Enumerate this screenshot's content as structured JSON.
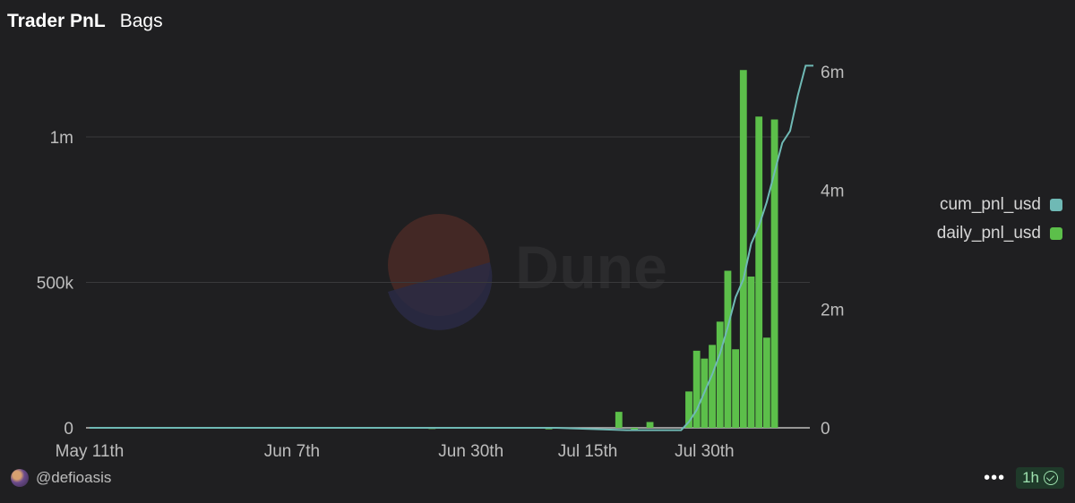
{
  "header": {
    "title": "Trader PnL",
    "subtitle": "Bags"
  },
  "watermark": {
    "text": "Dune"
  },
  "footer": {
    "author": "@defioasis",
    "refresh": "1h",
    "more_label": "•••"
  },
  "colors": {
    "bar": "#5cbf4a",
    "line": "#6fb9b5",
    "grid": "#3a3a3c",
    "text": "#bdbdbd"
  },
  "chart_data": {
    "type": "bar",
    "x_axis": {
      "ticks": [
        "May 11th",
        "Jun 7th",
        "Jun 30th",
        "Jul 15th",
        "Jul 30th"
      ]
    },
    "y_left": {
      "ticks": [
        "0",
        "500k",
        "1m"
      ],
      "ylim": [
        0,
        1250000
      ]
    },
    "y_right": {
      "ticks": [
        "0",
        "2m",
        "4m",
        "6m"
      ],
      "ylim": [
        0,
        6200000
      ]
    },
    "legend": {
      "position": "right"
    },
    "series": [
      {
        "name": "cum_pnl_usd",
        "type": "line",
        "axis": "right",
        "color": "#6fb9b5",
        "points": [
          [
            0,
            0
          ],
          [
            60,
            0
          ],
          [
            69,
            -40000
          ],
          [
            76,
            -40000
          ],
          [
            77,
            100000
          ],
          [
            78,
            300000
          ],
          [
            79,
            600000
          ],
          [
            80,
            900000
          ],
          [
            81,
            1250000
          ],
          [
            82,
            1700000
          ],
          [
            83,
            2200000
          ],
          [
            84,
            2500000
          ],
          [
            85,
            3100000
          ],
          [
            86,
            3400000
          ],
          [
            87,
            3800000
          ],
          [
            88,
            4300000
          ],
          [
            89,
            4800000
          ],
          [
            90,
            5000000
          ],
          [
            91,
            5600000
          ],
          [
            92,
            6100000
          ],
          [
            93,
            6100000
          ]
        ]
      },
      {
        "name": "daily_pnl_usd",
        "type": "bar",
        "axis": "left",
        "color": "#5cbf4a",
        "bars": [
          [
            17,
            3000
          ],
          [
            18,
            3000
          ],
          [
            44,
            2000
          ],
          [
            59,
            1000
          ],
          [
            68,
            55000
          ],
          [
            70,
            -8000
          ],
          [
            72,
            20000
          ],
          [
            77,
            125000
          ],
          [
            78,
            265000
          ],
          [
            79,
            238000
          ],
          [
            80,
            285000
          ],
          [
            81,
            365000
          ],
          [
            82,
            540000
          ],
          [
            83,
            270000
          ],
          [
            84,
            1230000
          ],
          [
            85,
            520000
          ],
          [
            86,
            1070000
          ],
          [
            87,
            310000
          ],
          [
            88,
            1060000
          ]
        ]
      }
    ]
  }
}
